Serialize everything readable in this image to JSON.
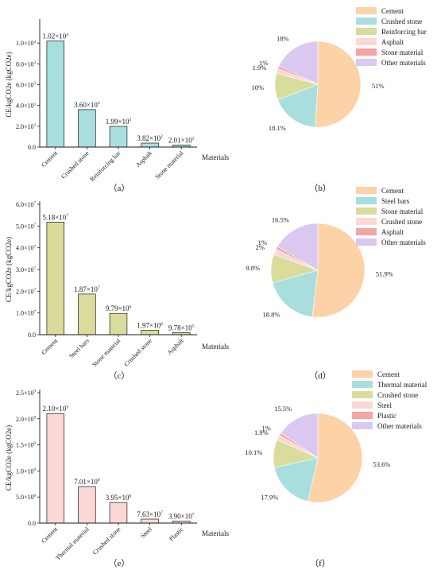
{
  "panels": [
    {
      "id": "a",
      "caption": "（a）",
      "ylabel": "CE/kgCO2e (kgCO2e)",
      "xlabel": "Materials",
      "ymax": 12000,
      "yticks": [
        {
          "v": 0,
          "base": "0.0",
          "exp": ""
        },
        {
          "v": 2000,
          "base": "2.0×10",
          "exp": "3"
        },
        {
          "v": 4000,
          "base": "4.0×10",
          "exp": "3"
        },
        {
          "v": 6000,
          "base": "6.0×10",
          "exp": "3"
        },
        {
          "v": 8000,
          "base": "8.0×10",
          "exp": "3"
        },
        {
          "v": 10000,
          "base": "1.0×10",
          "exp": "4"
        }
      ],
      "categories": [
        "Cement",
        "Crushed stone",
        "Reinforcing bar",
        "Asphalt",
        "Stone material"
      ],
      "values": [
        10200,
        3600,
        1990,
        382,
        201
      ],
      "labels": [
        {
          "base": "1.02×10",
          "exp": "4"
        },
        {
          "base": "3.60×10",
          "exp": "3"
        },
        {
          "base": "1.99×10",
          "exp": "3"
        },
        {
          "base": "3.82×10",
          "exp": "2"
        },
        {
          "base": "2.01×10",
          "exp": "2"
        }
      ],
      "color": "#a8dede"
    },
    {
      "id": "c",
      "caption": "（c）",
      "ylabel": "CE/kgCO2e (kgCO2e)",
      "xlabel": "Materials",
      "ymax": 60000000,
      "yticks": [
        {
          "v": 0,
          "base": "0.0",
          "exp": ""
        },
        {
          "v": 10000000,
          "base": "1.0×10",
          "exp": "7"
        },
        {
          "v": 20000000,
          "base": "2.0×10",
          "exp": "7"
        },
        {
          "v": 30000000,
          "base": "3.0×10",
          "exp": "7"
        },
        {
          "v": 40000000,
          "base": "4.0×10",
          "exp": "7"
        },
        {
          "v": 50000000,
          "base": "5.0×10",
          "exp": "7"
        },
        {
          "v": 60000000,
          "base": "6.0×10",
          "exp": "7"
        }
      ],
      "categories": [
        "Cement",
        "Steel bars",
        "Stone material",
        "Crushed stone",
        "Asphalt"
      ],
      "values": [
        51800000,
        18700000,
        9790000,
        1970000,
        978000
      ],
      "labels": [
        {
          "base": "5.18×10",
          "exp": "7"
        },
        {
          "base": "1.87×10",
          "exp": "7"
        },
        {
          "base": "9.79×10",
          "exp": "6"
        },
        {
          "base": "1.97×10",
          "exp": "6"
        },
        {
          "base": "9.78×10",
          "exp": "5"
        }
      ],
      "color": "#d9dc9a"
    },
    {
      "id": "e",
      "caption": "（e）",
      "ylabel": "CE/kgCO2e (kgCO2e)",
      "xlabel": "Materials",
      "ymax": 2500000000,
      "yticks": [
        {
          "v": 0,
          "base": "0.0",
          "exp": ""
        },
        {
          "v": 500000000,
          "base": "5.0×10",
          "exp": "8"
        },
        {
          "v": 1000000000,
          "base": "1.0×10",
          "exp": "9"
        },
        {
          "v": 1500000000,
          "base": "1.5×10",
          "exp": "9"
        },
        {
          "v": 2000000000,
          "base": "2.0×10",
          "exp": "9"
        },
        {
          "v": 2500000000,
          "base": "2.5×10",
          "exp": "9"
        }
      ],
      "categories": [
        "Cement",
        "Thermal material",
        "Crushed stone",
        "Steel",
        "Plastic"
      ],
      "values": [
        2100000000,
        701000000,
        395000000,
        76300000,
        39000000
      ],
      "labels": [
        {
          "base": "2.10×10",
          "exp": "9"
        },
        {
          "base": "7.01×10",
          "exp": "8"
        },
        {
          "base": "3.95×10",
          "exp": "8"
        },
        {
          "base": "7.63×10",
          "exp": "7"
        },
        {
          "base": "3.90×10",
          "exp": "7"
        }
      ],
      "color": "#fbd8d6"
    }
  ],
  "pies": [
    {
      "id": "b",
      "caption": "（b）",
      "slices": [
        {
          "label": "Cement",
          "pct": "51%",
          "value": 51,
          "color": "#fcd2a6"
        },
        {
          "label": "Crushed stone",
          "pct": "18.1%",
          "value": 18.1,
          "color": "#a8dede"
        },
        {
          "label": "Reinforcing bar",
          "pct": "10%",
          "value": 10,
          "color": "#d9dc9a"
        },
        {
          "label": "Asphalt",
          "pct": "1.9%",
          "value": 1.9,
          "color": "#fbd8d6"
        },
        {
          "label": "Stone material",
          "pct": "1%",
          "value": 1,
          "color": "#f5a3a3"
        },
        {
          "label": "Other materials",
          "pct": "18%",
          "value": 18,
          "color": "#dac8f0"
        }
      ]
    },
    {
      "id": "d",
      "caption": "（d）",
      "slices": [
        {
          "label": "Cement",
          "pct": "51.9%",
          "value": 51.9,
          "color": "#fcd2a6"
        },
        {
          "label": "Steel bars",
          "pct": "18.8%",
          "value": 18.8,
          "color": "#a8dede"
        },
        {
          "label": "Stone material",
          "pct": "9.8%",
          "value": 9.8,
          "color": "#d9dc9a"
        },
        {
          "label": "Crushed stone",
          "pct": "2%",
          "value": 2,
          "color": "#fbd8d6"
        },
        {
          "label": "Asphalt",
          "pct": "1%",
          "value": 1,
          "color": "#f5a3a3"
        },
        {
          "label": "Other materials",
          "pct": "16.5%",
          "value": 16.5,
          "color": "#dac8f0"
        }
      ]
    },
    {
      "id": "f",
      "caption": "（f）",
      "slices": [
        {
          "label": "Cement",
          "pct": "53.6%",
          "value": 53.6,
          "color": "#fcd2a6"
        },
        {
          "label": "Thermal material",
          "pct": "17.9%",
          "value": 17.9,
          "color": "#a8dede"
        },
        {
          "label": "Crushed stone",
          "pct": "10.1%",
          "value": 10.1,
          "color": "#d9dc9a"
        },
        {
          "label": "Steel",
          "pct": "1.9%",
          "value": 1.9,
          "color": "#fbd8d6"
        },
        {
          "label": "Plastic",
          "pct": "1%",
          "value": 1,
          "color": "#f5a3a3"
        },
        {
          "label": "Other materials",
          "pct": "15.5%",
          "value": 15.5,
          "color": "#dac8f0"
        }
      ]
    }
  ],
  "chart_data": [
    {
      "type": "bar",
      "title": "",
      "ylabel": "CE/kgCO2e (kgCO2e)",
      "xlabel": "Materials",
      "categories": [
        "Cement",
        "Crushed stone",
        "Reinforcing bar",
        "Asphalt",
        "Stone material"
      ],
      "values": [
        10200,
        3600,
        1990,
        382,
        201
      ],
      "ylim": [
        0,
        12000
      ],
      "grid": false
    },
    {
      "type": "pie",
      "categories": [
        "Cement",
        "Crushed stone",
        "Reinforcing bar",
        "Asphalt",
        "Stone material",
        "Other materials"
      ],
      "values": [
        51,
        18.1,
        10,
        1.9,
        1,
        18
      ],
      "legend": "top-right"
    },
    {
      "type": "bar",
      "title": "",
      "ylabel": "CE/kgCO2e (kgCO2e)",
      "xlabel": "Materials",
      "categories": [
        "Cement",
        "Steel bars",
        "Stone material",
        "Crushed stone",
        "Asphalt"
      ],
      "values": [
        51800000,
        18700000,
        9790000,
        1970000,
        978000
      ],
      "ylim": [
        0,
        60000000
      ],
      "grid": false
    },
    {
      "type": "pie",
      "categories": [
        "Cement",
        "Steel bars",
        "Stone material",
        "Crushed stone",
        "Asphalt",
        "Other materials"
      ],
      "values": [
        51.9,
        18.8,
        9.8,
        2,
        1,
        16.5
      ],
      "legend": "top-right"
    },
    {
      "type": "bar",
      "title": "",
      "ylabel": "CE/kgCO2e (kgCO2e)",
      "xlabel": "Materials",
      "categories": [
        "Cement",
        "Thermal material",
        "Crushed stone",
        "Steel",
        "Plastic"
      ],
      "values": [
        2100000000,
        701000000,
        395000000,
        76300000,
        39000000
      ],
      "ylim": [
        0,
        2500000000
      ],
      "grid": false
    },
    {
      "type": "pie",
      "categories": [
        "Cement",
        "Thermal material",
        "Crushed stone",
        "Steel",
        "Plastic",
        "Other materials"
      ],
      "values": [
        53.6,
        17.9,
        10.1,
        1.9,
        1,
        15.5
      ],
      "legend": "top-right"
    }
  ]
}
